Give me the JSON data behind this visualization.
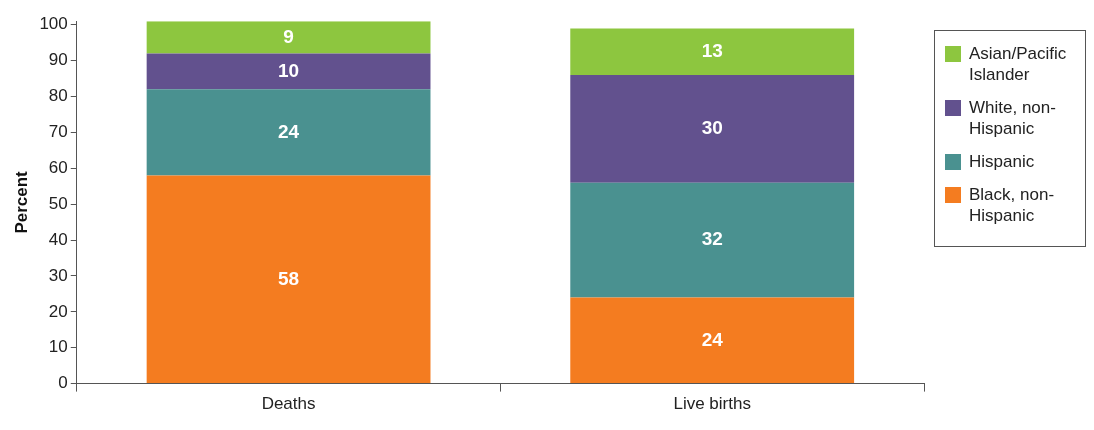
{
  "chart_data": {
    "type": "bar",
    "stacked": true,
    "ylabel": "Percent",
    "categories": [
      "Deaths",
      "Live births"
    ],
    "series": [
      {
        "name": "Black, non-Hispanic",
        "color": "#f47c20",
        "values": [
          58,
          24
        ]
      },
      {
        "name": "Hispanic",
        "color": "#4a9190",
        "values": [
          24,
          32
        ]
      },
      {
        "name": "White, non-Hispanic",
        "color": "#62518e",
        "values": [
          10,
          30
        ]
      },
      {
        "name": "Asian/Pacific Islander",
        "color": "#8dc63f",
        "values": [
          9,
          13
        ]
      }
    ],
    "ylim": [
      0,
      101
    ],
    "yticks": [
      0,
      10,
      20,
      30,
      40,
      50,
      60,
      70,
      80,
      90,
      100
    ],
    "grid": false,
    "legend": "right",
    "data_labels": true
  }
}
